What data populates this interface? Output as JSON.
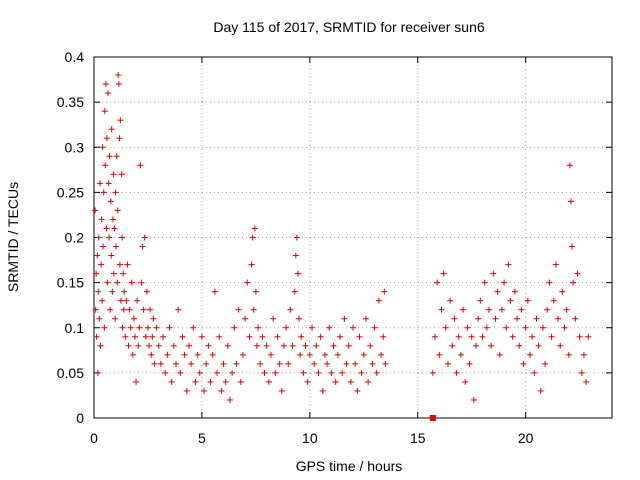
{
  "chart_data": {
    "type": "scatter",
    "title": "Day 115 of 2017, SRMTID for receiver sun6",
    "xlabel": "GPS time / hours",
    "ylabel": "SRMTID / TECUs",
    "xlim": [
      0,
      24
    ],
    "ylim": [
      0,
      0.4
    ],
    "xticks": [
      0,
      5,
      10,
      15,
      20
    ],
    "xtick_labels": [
      "0",
      "5",
      "10",
      "15",
      "20"
    ],
    "yticks": [
      0,
      0.05,
      0.1,
      0.15,
      0.2,
      0.25,
      0.3,
      0.35,
      0.4
    ],
    "ytick_labels": [
      "0",
      "0.05",
      "0.1",
      "0.15",
      "0.2",
      "0.25",
      "0.3",
      "0.35",
      "0.4"
    ],
    "grid": true,
    "marker": "plus",
    "color": "#e00000",
    "special_point": {
      "x": 15.7,
      "y": 0.0,
      "marker": "square"
    },
    "series": [
      {
        "name": "SRMTID",
        "points": [
          [
            0.05,
            0.23
          ],
          [
            0.08,
            0.12
          ],
          [
            0.1,
            0.16
          ],
          [
            0.12,
            0.09
          ],
          [
            0.15,
            0.18
          ],
          [
            0.18,
            0.05
          ],
          [
            0.2,
            0.14
          ],
          [
            0.22,
            0.2
          ],
          [
            0.25,
            0.11
          ],
          [
            0.28,
            0.26
          ],
          [
            0.3,
            0.08
          ],
          [
            0.33,
            0.17
          ],
          [
            0.35,
            0.22
          ],
          [
            0.38,
            0.13
          ],
          [
            0.4,
            0.3
          ],
          [
            0.42,
            0.19
          ],
          [
            0.45,
            0.25
          ],
          [
            0.48,
            0.1
          ],
          [
            0.5,
            0.34
          ],
          [
            0.52,
            0.28
          ],
          [
            0.55,
            0.37
          ],
          [
            0.58,
            0.21
          ],
          [
            0.6,
            0.31
          ],
          [
            0.62,
            0.15
          ],
          [
            0.65,
            0.36
          ],
          [
            0.68,
            0.26
          ],
          [
            0.7,
            0.2
          ],
          [
            0.72,
            0.29
          ],
          [
            0.75,
            0.12
          ],
          [
            0.78,
            0.24
          ],
          [
            0.8,
            0.18
          ],
          [
            0.82,
            0.32
          ],
          [
            0.85,
            0.14
          ],
          [
            0.88,
            0.22
          ],
          [
            0.9,
            0.27
          ],
          [
            0.92,
            0.16
          ],
          [
            0.95,
            0.21
          ],
          [
            0.98,
            0.11
          ],
          [
            1.0,
            0.25
          ],
          [
            1.02,
            0.19
          ],
          [
            1.05,
            0.29
          ],
          [
            1.08,
            0.15
          ],
          [
            1.1,
            0.23
          ],
          [
            1.12,
            0.38
          ],
          [
            1.15,
            0.37
          ],
          [
            1.18,
            0.31
          ],
          [
            1.2,
            0.17
          ],
          [
            1.22,
            0.33
          ],
          [
            1.25,
            0.13
          ],
          [
            1.28,
            0.27
          ],
          [
            1.3,
            0.2
          ],
          [
            1.32,
            0.1
          ],
          [
            1.35,
            0.16
          ],
          [
            1.38,
            0.12
          ],
          [
            1.4,
            0.14
          ],
          [
            1.45,
            0.09
          ],
          [
            1.5,
            0.13
          ],
          [
            1.55,
            0.17
          ],
          [
            1.6,
            0.08
          ],
          [
            1.65,
            0.12
          ],
          [
            1.7,
            0.1
          ],
          [
            1.75,
            0.15
          ],
          [
            1.8,
            0.07
          ],
          [
            1.85,
            0.11
          ],
          [
            1.9,
            0.09
          ],
          [
            1.95,
            0.04
          ],
          [
            2.0,
            0.13
          ],
          [
            2.05,
            0.08
          ],
          [
            2.1,
            0.1
          ],
          [
            2.15,
            0.28
          ],
          [
            2.2,
            0.15
          ],
          [
            2.25,
            0.19
          ],
          [
            2.3,
            0.12
          ],
          [
            2.35,
            0.2
          ],
          [
            2.4,
            0.09
          ],
          [
            2.45,
            0.14
          ],
          [
            2.5,
            0.1
          ],
          [
            2.55,
            0.08
          ],
          [
            2.6,
            0.12
          ],
          [
            2.65,
            0.07
          ],
          [
            2.7,
            0.09
          ],
          [
            2.75,
            0.11
          ],
          [
            2.8,
            0.06
          ],
          [
            2.9,
            0.1
          ],
          [
            3.0,
            0.08
          ],
          [
            3.1,
            0.06
          ],
          [
            3.2,
            0.09
          ],
          [
            3.3,
            0.05
          ],
          [
            3.4,
            0.07
          ],
          [
            3.5,
            0.1
          ],
          [
            3.6,
            0.04
          ],
          [
            3.7,
            0.08
          ],
          [
            3.8,
            0.06
          ],
          [
            3.9,
            0.12
          ],
          [
            4.0,
            0.05
          ],
          [
            4.1,
            0.09
          ],
          [
            4.2,
            0.07
          ],
          [
            4.3,
            0.03
          ],
          [
            4.4,
            0.08
          ],
          [
            4.5,
            0.06
          ],
          [
            4.6,
            0.1
          ],
          [
            4.7,
            0.04
          ],
          [
            4.8,
            0.07
          ],
          [
            4.9,
            0.05
          ],
          [
            5.0,
            0.09
          ],
          [
            5.1,
            0.03
          ],
          [
            5.2,
            0.06
          ],
          [
            5.3,
            0.08
          ],
          [
            5.4,
            0.04
          ],
          [
            5.5,
            0.07
          ],
          [
            5.6,
            0.14
          ],
          [
            5.7,
            0.05
          ],
          [
            5.8,
            0.09
          ],
          [
            5.9,
            0.03
          ],
          [
            6.0,
            0.06
          ],
          [
            6.1,
            0.04
          ],
          [
            6.2,
            0.08
          ],
          [
            6.3,
            0.02
          ],
          [
            6.4,
            0.05
          ],
          [
            6.5,
            0.1
          ],
          [
            6.6,
            0.06
          ],
          [
            6.7,
            0.12
          ],
          [
            6.8,
            0.04
          ],
          [
            6.9,
            0.07
          ],
          [
            7.0,
            0.11
          ],
          [
            7.1,
            0.15
          ],
          [
            7.2,
            0.09
          ],
          [
            7.3,
            0.17
          ],
          [
            7.35,
            0.2
          ],
          [
            7.4,
            0.12
          ],
          [
            7.45,
            0.21
          ],
          [
            7.5,
            0.14
          ],
          [
            7.55,
            0.08
          ],
          [
            7.6,
            0.1
          ],
          [
            7.7,
            0.06
          ],
          [
            7.8,
            0.09
          ],
          [
            7.9,
            0.05
          ],
          [
            8.0,
            0.08
          ],
          [
            8.1,
            0.04
          ],
          [
            8.2,
            0.07
          ],
          [
            8.3,
            0.11
          ],
          [
            8.4,
            0.05
          ],
          [
            8.5,
            0.09
          ],
          [
            8.6,
            0.06
          ],
          [
            8.7,
            0.03
          ],
          [
            8.8,
            0.08
          ],
          [
            8.9,
            0.1
          ],
          [
            9.0,
            0.06
          ],
          [
            9.1,
            0.12
          ],
          [
            9.2,
            0.08
          ],
          [
            9.3,
            0.14
          ],
          [
            9.35,
            0.18
          ],
          [
            9.4,
            0.2
          ],
          [
            9.45,
            0.16
          ],
          [
            9.5,
            0.11
          ],
          [
            9.55,
            0.07
          ],
          [
            9.6,
            0.09
          ],
          [
            9.7,
            0.05
          ],
          [
            9.8,
            0.08
          ],
          [
            9.9,
            0.04
          ],
          [
            10.0,
            0.07
          ],
          [
            10.1,
            0.1
          ],
          [
            10.2,
            0.06
          ],
          [
            10.3,
            0.08
          ],
          [
            10.4,
            0.05
          ],
          [
            10.5,
            0.09
          ],
          [
            10.6,
            0.03
          ],
          [
            10.7,
            0.07
          ],
          [
            10.8,
            0.06
          ],
          [
            10.9,
            0.1
          ],
          [
            11.0,
            0.05
          ],
          [
            11.1,
            0.08
          ],
          [
            11.2,
            0.04
          ],
          [
            11.3,
            0.07
          ],
          [
            11.4,
            0.09
          ],
          [
            11.5,
            0.05
          ],
          [
            11.6,
            0.11
          ],
          [
            11.7,
            0.06
          ],
          [
            11.8,
            0.08
          ],
          [
            11.9,
            0.04
          ],
          [
            12.0,
            0.1
          ],
          [
            12.1,
            0.06
          ],
          [
            12.2,
            0.03
          ],
          [
            12.3,
            0.09
          ],
          [
            12.4,
            0.05
          ],
          [
            12.5,
            0.07
          ],
          [
            12.6,
            0.11
          ],
          [
            12.7,
            0.04
          ],
          [
            12.8,
            0.08
          ],
          [
            12.9,
            0.06
          ],
          [
            13.0,
            0.1
          ],
          [
            13.1,
            0.05
          ],
          [
            13.2,
            0.13
          ],
          [
            13.3,
            0.07
          ],
          [
            13.4,
            0.09
          ],
          [
            13.45,
            0.14
          ],
          [
            13.5,
            0.06
          ],
          [
            15.7,
            0.05
          ],
          [
            15.8,
            0.09
          ],
          [
            15.9,
            0.15
          ],
          [
            16.0,
            0.07
          ],
          [
            16.1,
            0.12
          ],
          [
            16.2,
            0.16
          ],
          [
            16.3,
            0.1
          ],
          [
            16.4,
            0.06
          ],
          [
            16.5,
            0.13
          ],
          [
            16.6,
            0.08
          ],
          [
            16.7,
            0.11
          ],
          [
            16.8,
            0.05
          ],
          [
            16.9,
            0.09
          ],
          [
            17.0,
            0.07
          ],
          [
            17.1,
            0.12
          ],
          [
            17.2,
            0.04
          ],
          [
            17.3,
            0.1
          ],
          [
            17.4,
            0.06
          ],
          [
            17.5,
            0.09
          ],
          [
            17.6,
            0.02
          ],
          [
            17.7,
            0.08
          ],
          [
            17.8,
            0.11
          ],
          [
            17.9,
            0.13
          ],
          [
            18.0,
            0.09
          ],
          [
            18.1,
            0.15
          ],
          [
            18.2,
            0.1
          ],
          [
            18.3,
            0.12
          ],
          [
            18.4,
            0.08
          ],
          [
            18.5,
            0.16
          ],
          [
            18.6,
            0.11
          ],
          [
            18.7,
            0.14
          ],
          [
            18.8,
            0.07
          ],
          [
            18.9,
            0.12
          ],
          [
            19.0,
            0.15
          ],
          [
            19.1,
            0.1
          ],
          [
            19.2,
            0.17
          ],
          [
            19.3,
            0.13
          ],
          [
            19.4,
            0.09
          ],
          [
            19.5,
            0.14
          ],
          [
            19.6,
            0.11
          ],
          [
            19.7,
            0.08
          ],
          [
            19.8,
            0.12
          ],
          [
            19.9,
            0.06
          ],
          [
            20.0,
            0.1
          ],
          [
            20.1,
            0.13
          ],
          [
            20.2,
            0.07
          ],
          [
            20.3,
            0.09
          ],
          [
            20.4,
            0.05
          ],
          [
            20.5,
            0.11
          ],
          [
            20.6,
            0.08
          ],
          [
            20.7,
            0.03
          ],
          [
            20.8,
            0.1
          ],
          [
            20.9,
            0.06
          ],
          [
            21.0,
            0.12
          ],
          [
            21.1,
            0.15
          ],
          [
            21.2,
            0.09
          ],
          [
            21.3,
            0.13
          ],
          [
            21.4,
            0.17
          ],
          [
            21.5,
            0.11
          ],
          [
            21.6,
            0.08
          ],
          [
            21.7,
            0.14
          ],
          [
            21.8,
            0.1
          ],
          [
            21.9,
            0.12
          ],
          [
            22.0,
            0.07
          ],
          [
            22.05,
            0.28
          ],
          [
            22.1,
            0.24
          ],
          [
            22.15,
            0.19
          ],
          [
            22.2,
            0.15
          ],
          [
            22.3,
            0.11
          ],
          [
            22.4,
            0.16
          ],
          [
            22.5,
            0.09
          ],
          [
            22.6,
            0.05
          ],
          [
            22.7,
            0.07
          ],
          [
            22.8,
            0.04
          ],
          [
            22.9,
            0.09
          ]
        ]
      }
    ]
  }
}
